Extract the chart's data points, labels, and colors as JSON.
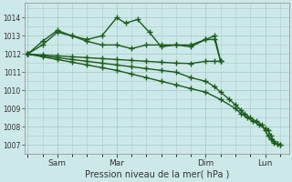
{
  "background_color": "#cce8e8",
  "grid_color": "#aacccc",
  "line_color": "#1a5c1a",
  "xlabel": "Pression niveau de la mer( hPa )",
  "ylim": [
    1006.5,
    1014.8
  ],
  "yticks": [
    1007,
    1008,
    1009,
    1010,
    1011,
    1012,
    1013,
    1014
  ],
  "lines": [
    {
      "x": [
        0,
        0.5,
        1.0,
        1.5,
        2.0,
        2.5,
        3.0,
        3.3,
        3.7,
        4.1,
        4.5,
        5.0,
        5.5,
        6.0,
        6.3,
        6.5
      ],
      "y": [
        1012.0,
        1012.5,
        1013.2,
        1013.0,
        1012.8,
        1013.0,
        1014.0,
        1013.7,
        1013.9,
        1013.2,
        1012.4,
        1012.5,
        1012.4,
        1012.8,
        1013.0,
        1011.6
      ],
      "marker": "+",
      "markersize": 4,
      "linewidth": 1.0
    },
    {
      "x": [
        0,
        0.5,
        1.0,
        1.5,
        2.0,
        2.5,
        3.0,
        3.5,
        4.0,
        4.5,
        5.0,
        5.5,
        6.0,
        6.3,
        6.5
      ],
      "y": [
        1012.0,
        1012.7,
        1013.3,
        1013.0,
        1012.7,
        1012.5,
        1012.5,
        1012.3,
        1012.5,
        1012.5,
        1012.5,
        1012.5,
        1012.8,
        1012.8,
        1011.6
      ],
      "marker": "+",
      "markersize": 4,
      "linewidth": 1.0
    },
    {
      "x": [
        0,
        0.5,
        1.0,
        1.5,
        2.0,
        2.5,
        3.0,
        3.5,
        4.0,
        4.5,
        5.0,
        5.5,
        6.0,
        6.3,
        6.5
      ],
      "y": [
        1012.0,
        1011.95,
        1011.9,
        1011.85,
        1011.8,
        1011.75,
        1011.7,
        1011.65,
        1011.6,
        1011.55,
        1011.5,
        1011.48,
        1011.6,
        1011.6,
        1011.6
      ],
      "marker": "+",
      "markersize": 4,
      "linewidth": 1.0
    },
    {
      "x": [
        0,
        0.5,
        1.0,
        1.5,
        2.0,
        2.5,
        3.0,
        3.5,
        4.0,
        4.5,
        5.0,
        5.5,
        6.0,
        6.3,
        6.5,
        6.8,
        7.0,
        7.2,
        7.3,
        7.5,
        7.7,
        7.9,
        8.0,
        8.1,
        8.2,
        8.3,
        8.4,
        8.5
      ],
      "y": [
        1012.0,
        1011.9,
        1011.8,
        1011.7,
        1011.6,
        1011.5,
        1011.4,
        1011.3,
        1011.2,
        1011.1,
        1011.0,
        1010.7,
        1010.5,
        1010.2,
        1009.9,
        1009.5,
        1009.2,
        1008.9,
        1008.7,
        1008.5,
        1008.3,
        1008.1,
        1007.8,
        1007.5,
        1007.3,
        1007.1,
        1007.05,
        1007.0
      ],
      "marker": "+",
      "markersize": 4,
      "linewidth": 1.0
    },
    {
      "x": [
        0,
        0.5,
        1.0,
        1.5,
        2.0,
        2.5,
        3.0,
        3.5,
        4.0,
        4.5,
        5.0,
        5.5,
        6.0,
        6.5,
        7.0,
        7.2,
        7.4,
        7.6,
        7.8,
        8.0,
        8.1,
        8.2,
        8.3,
        8.4,
        8.5
      ],
      "y": [
        1012.0,
        1011.85,
        1011.7,
        1011.55,
        1011.4,
        1011.25,
        1011.1,
        1010.9,
        1010.7,
        1010.5,
        1010.3,
        1010.1,
        1009.9,
        1009.5,
        1009.0,
        1008.7,
        1008.5,
        1008.3,
        1008.1,
        1007.9,
        1007.8,
        1007.5,
        1007.2,
        1007.05,
        1007.0
      ],
      "marker": "+",
      "markersize": 4,
      "linewidth": 1.0
    }
  ],
  "xtick_positions": [
    0.0,
    1.0,
    3.0,
    6.0,
    8.0
  ],
  "xtick_labels": [
    "",
    "Sam",
    "Mar",
    "Dim",
    "Lun"
  ],
  "xlim": [
    -0.1,
    8.8
  ]
}
